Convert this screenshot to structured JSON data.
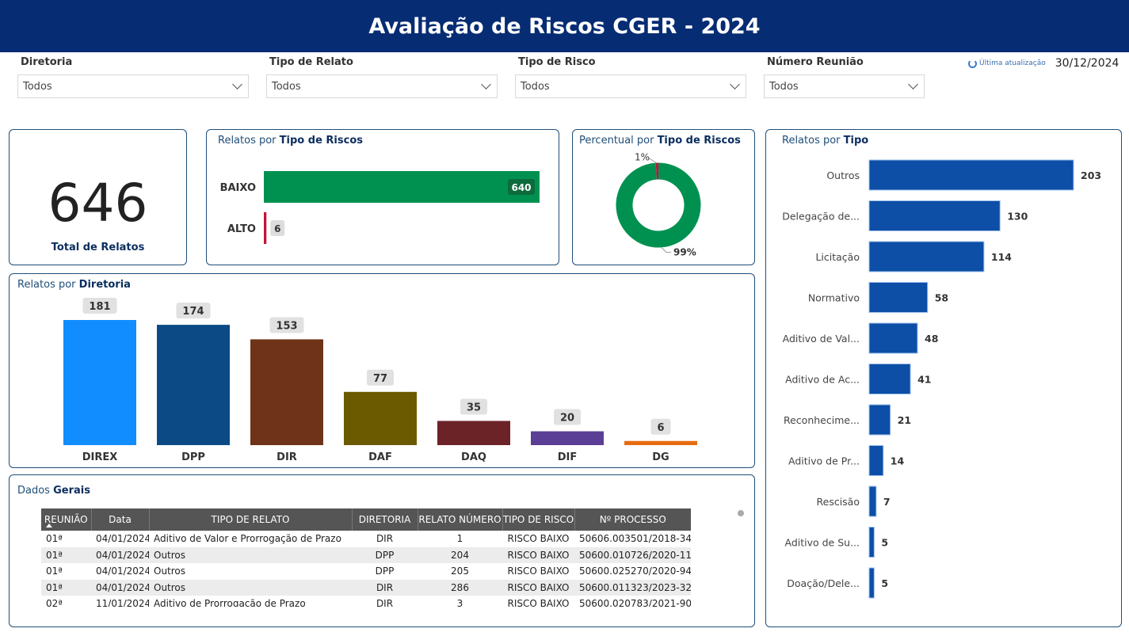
{
  "header": {
    "title": "Avaliação de Riscos CGER - 2024"
  },
  "filters": [
    {
      "label": "Diretoria",
      "value": "Todos"
    },
    {
      "label": "Tipo de Relato",
      "value": "Todos"
    },
    {
      "label": "Tipo de Risco",
      "value": "Todos"
    },
    {
      "label": "Número Reunião",
      "value": "Todos"
    }
  ],
  "update": {
    "label": "Última atualização",
    "date": "30/12/2024"
  },
  "kpi": {
    "value": "646",
    "label": "Total de Relatos"
  },
  "titles": {
    "risk_bar_prefix": "Relatos por ",
    "risk_bar_bold": "Tipo de Riscos",
    "risk_pct_prefix": "Percentual por ",
    "risk_pct_bold": "Tipo de Riscos",
    "tipo_prefix": "Relatos por ",
    "tipo_bold": "Tipo",
    "diretoria_prefix": "Relatos por ",
    "diretoria_bold": "Diretoria",
    "dados_prefix": "Dados ",
    "dados_bold": "Gerais"
  },
  "chart_data": [
    {
      "type": "bar",
      "orientation": "horizontal",
      "title": "Relatos por Tipo de Riscos",
      "categories": [
        "BAIXO",
        "ALTO"
      ],
      "values": [
        640,
        6
      ],
      "colors": [
        "#009150",
        "#c0143c"
      ]
    },
    {
      "type": "pie",
      "donut": true,
      "title": "Percentual por Tipo de Riscos",
      "categories": [
        "BAIXO",
        "ALTO"
      ],
      "values": [
        99,
        1
      ],
      "labels": [
        "99%",
        "1%"
      ],
      "colors": [
        "#009150",
        "#c0143c"
      ]
    },
    {
      "type": "bar",
      "title": "Relatos por Diretoria",
      "categories": [
        "DIREX",
        "DPP",
        "DIR",
        "DAF",
        "DAQ",
        "DIF",
        "DG"
      ],
      "values": [
        181,
        174,
        153,
        77,
        35,
        20,
        6
      ],
      "colors": [
        "#118dff",
        "#0b4a84",
        "#6e3318",
        "#6b5a00",
        "#6b2328",
        "#5b3e96",
        "#e66c11"
      ]
    },
    {
      "type": "bar",
      "orientation": "horizontal",
      "title": "Relatos por Tipo",
      "categories": [
        "Outros",
        "Delegação de...",
        "Licitação",
        "Normativo",
        "Aditivo de Val...",
        "Aditivo de Ac...",
        "Reconhecime...",
        "Aditivo de Pr...",
        "Rescisão",
        "Aditivo de Su...",
        "Doação/Dele..."
      ],
      "values": [
        203,
        130,
        114,
        58,
        48,
        41,
        21,
        14,
        7,
        5,
        5
      ],
      "color": "#0d4ea6"
    }
  ],
  "table": {
    "columns": [
      "REUNIÃO",
      "Data",
      "TIPO DE RELATO",
      "DIRETORIA",
      "RELATO NÚMERO",
      "TIPO DE RISCO",
      "Nº PROCESSO"
    ],
    "rows": [
      [
        "01ª",
        "04/01/2024",
        "Aditivo de Valor e Prorrogação de Prazo",
        "DIR",
        "1",
        "RISCO BAIXO",
        "50606.003501/2018-34"
      ],
      [
        "01ª",
        "04/01/2024",
        "Outros",
        "DPP",
        "204",
        "RISCO BAIXO",
        "50600.010726/2020-11"
      ],
      [
        "01ª",
        "04/01/2024",
        "Outros",
        "DPP",
        "205",
        "RISCO BAIXO",
        "50600.025270/2020-94"
      ],
      [
        "01ª",
        "04/01/2024",
        "Outros",
        "DIR",
        "286",
        "RISCO BAIXO",
        "50600.011323/2023-32"
      ],
      [
        "02ª",
        "11/01/2024",
        "Aditivo de Prorrogação de Prazo",
        "DIR",
        "3",
        "RISCO BAIXO",
        "50600.020783/2021-90"
      ]
    ]
  }
}
